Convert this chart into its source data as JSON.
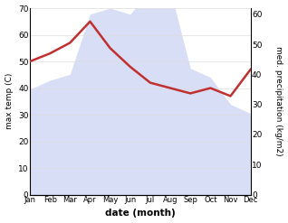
{
  "months": [
    "Jan",
    "Feb",
    "Mar",
    "Apr",
    "May",
    "Jun",
    "Jul",
    "Aug",
    "Sep",
    "Oct",
    "Nov",
    "Dec"
  ],
  "precipitation": [
    35,
    38,
    40,
    60,
    62,
    60,
    68,
    68,
    42,
    39,
    30,
    27
  ],
  "temperature": [
    50,
    53,
    57,
    65,
    55,
    48,
    42,
    40,
    38,
    40,
    37,
    47
  ],
  "temp_ylim": [
    0,
    70
  ],
  "precip_ylim": [
    0,
    62
  ],
  "precip_fill_color": "#b8c4ee",
  "temp_color": "#c03030",
  "xlabel": "date (month)",
  "ylabel_left": "max temp (C)",
  "ylabel_right": "med. precipitation (kg/m2)",
  "bg_color": "#ffffff",
  "left_yticks": [
    0,
    10,
    20,
    30,
    40,
    50,
    60,
    70
  ],
  "right_yticks": [
    0,
    10,
    20,
    30,
    40,
    50,
    60
  ]
}
